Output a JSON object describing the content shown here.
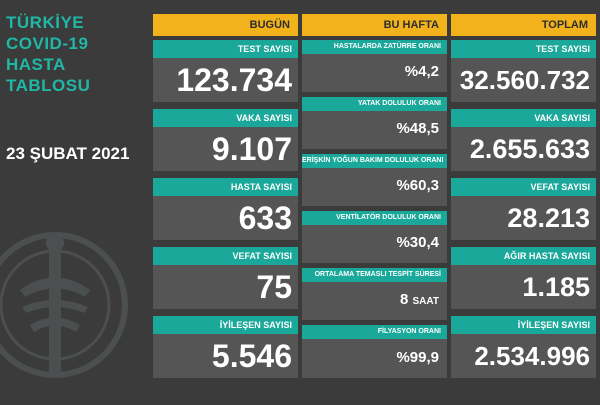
{
  "title_lines": [
    "TÜRKİYE",
    "COVID-19",
    "HASTA",
    "TABLOSU"
  ],
  "date": "23 ŞUBAT 2021",
  "columns": [
    {
      "header": "BUGÜN",
      "cards": [
        {
          "label": "TEST SAYISI",
          "value": "123.734"
        },
        {
          "label": "VAKA SAYISI",
          "value": "9.107"
        },
        {
          "label": "HASTA SAYISI",
          "value": "633"
        },
        {
          "label": "VEFAT SAYISI",
          "value": "75"
        },
        {
          "label": "İYİLEŞEN SAYISI",
          "value": "5.546"
        }
      ]
    },
    {
      "header": "BU HAFTA",
      "cards": [
        {
          "label": "HASTALARDA ZATÜRRE ORANI",
          "value": "%4,2"
        },
        {
          "label": "YATAK DOLULUK ORANI",
          "value": "%48,5"
        },
        {
          "label": "ERİŞKİN YOĞUN BAKIM DOLULUK ORANI",
          "value": "%60,3"
        },
        {
          "label": "VENTİLATÖR DOLULUK ORANI",
          "value": "%30,4"
        },
        {
          "label": "ORTALAMA TEMASLI TESPİT SÜRESİ",
          "value": "8",
          "unit": "SAAT"
        },
        {
          "label": "FİLYASYON ORANI",
          "value": "%99,9"
        }
      ]
    },
    {
      "header": "TOPLAM",
      "cards": [
        {
          "label": "TEST SAYISI",
          "value": "32.560.732"
        },
        {
          "label": "VAKA SAYISI",
          "value": "2.655.633"
        },
        {
          "label": "VEFAT SAYISI",
          "value": "28.213"
        },
        {
          "label": "AĞIR HASTA SAYISI",
          "value": "1.185"
        },
        {
          "label": "İYİLEŞEN SAYISI",
          "value": "2.534.996"
        }
      ]
    }
  ],
  "colors": {
    "background": "#3b3b3b",
    "header": "#f2b21b",
    "label": "#1aa89a",
    "card": "#555555",
    "title": "#1fb7a5"
  },
  "icons": {
    "emblem": "health-ministry-emblem-icon"
  }
}
